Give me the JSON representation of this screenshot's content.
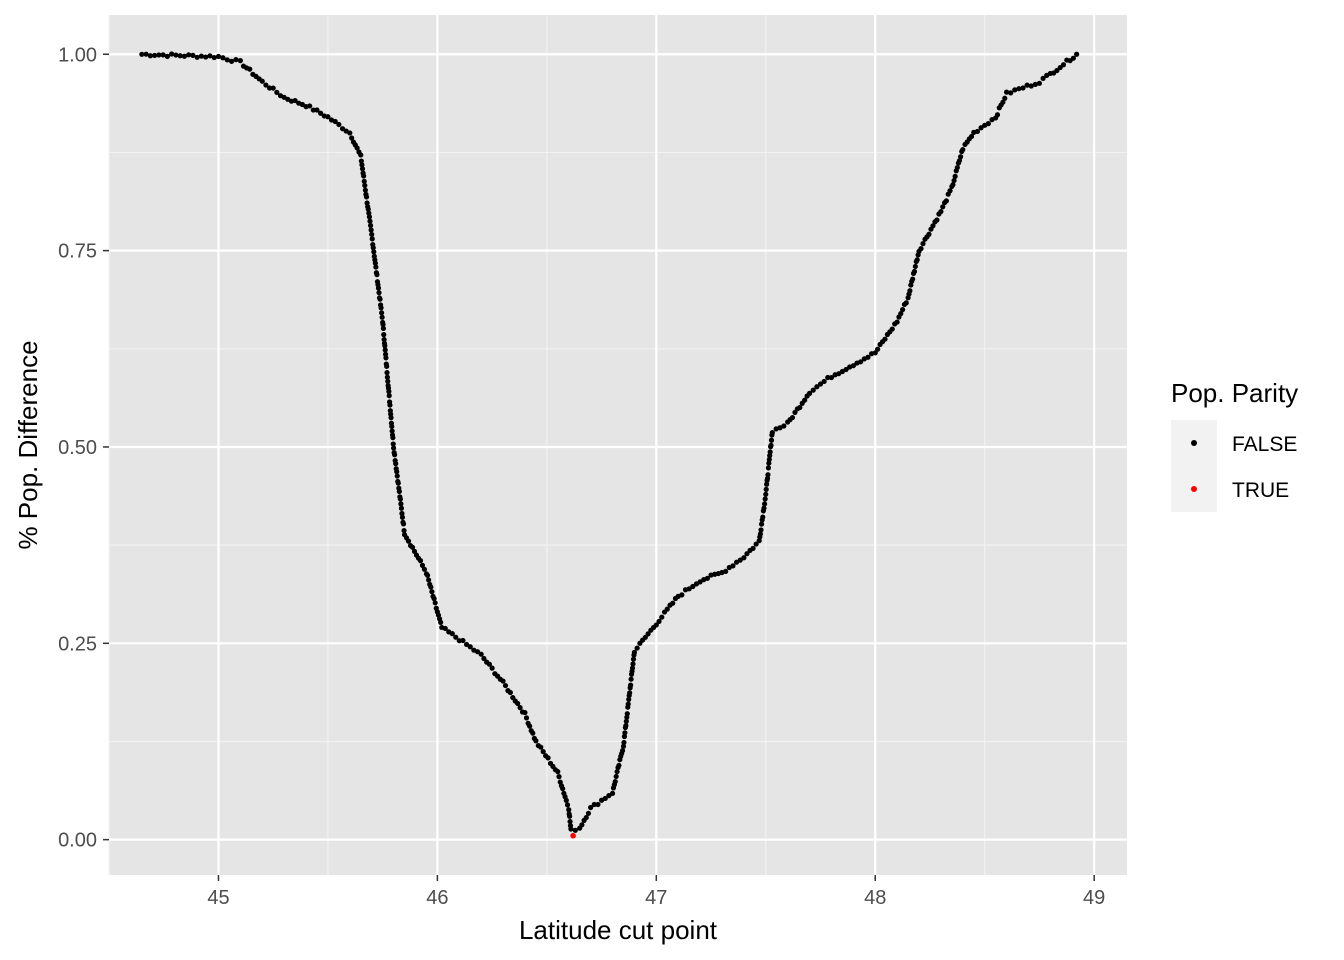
{
  "chart_data": {
    "type": "scatter",
    "title": "",
    "xlabel": "Latitude cut point",
    "ylabel": "% Pop. Difference",
    "xlim": [
      44.5,
      49.15
    ],
    "ylim": [
      -0.045,
      1.05
    ],
    "x_ticks": [
      45,
      46,
      47,
      48,
      49
    ],
    "x_tick_labels": [
      "45",
      "46",
      "47",
      "48",
      "49"
    ],
    "y_ticks": [
      0,
      0.25,
      0.5,
      0.75,
      1.0
    ],
    "y_tick_labels": [
      "0.00",
      "0.25",
      "0.50",
      "0.75",
      "1.00"
    ],
    "grid": true,
    "legend": {
      "title": "Pop. Parity",
      "position": "right",
      "entries": [
        {
          "label": "FALSE",
          "color": "#000000"
        },
        {
          "label": "TRUE",
          "color": "#ff0000"
        }
      ]
    },
    "curve_anchors": [
      [
        44.65,
        1.0
      ],
      [
        45.0,
        0.997
      ],
      [
        45.1,
        0.99
      ],
      [
        45.2,
        0.965
      ],
      [
        45.3,
        0.945
      ],
      [
        45.4,
        0.935
      ],
      [
        45.5,
        0.92
      ],
      [
        45.6,
        0.9
      ],
      [
        45.65,
        0.87
      ],
      [
        45.7,
        0.77
      ],
      [
        45.75,
        0.66
      ],
      [
        45.8,
        0.5
      ],
      [
        45.85,
        0.39
      ],
      [
        45.95,
        0.34
      ],
      [
        46.02,
        0.27
      ],
      [
        46.1,
        0.255
      ],
      [
        46.2,
        0.235
      ],
      [
        46.3,
        0.2
      ],
      [
        46.4,
        0.16
      ],
      [
        46.45,
        0.125
      ],
      [
        46.55,
        0.085
      ],
      [
        46.6,
        0.04
      ],
      [
        46.61,
        0.012
      ],
      [
        46.65,
        0.015
      ],
      [
        46.7,
        0.04
      ],
      [
        46.8,
        0.06
      ],
      [
        46.85,
        0.12
      ],
      [
        46.9,
        0.24
      ],
      [
        47.0,
        0.275
      ],
      [
        47.1,
        0.31
      ],
      [
        47.2,
        0.33
      ],
      [
        47.3,
        0.34
      ],
      [
        47.4,
        0.36
      ],
      [
        47.47,
        0.38
      ],
      [
        47.5,
        0.44
      ],
      [
        47.53,
        0.52
      ],
      [
        47.6,
        0.53
      ],
      [
        47.7,
        0.57
      ],
      [
        47.8,
        0.59
      ],
      [
        47.9,
        0.605
      ],
      [
        48.0,
        0.62
      ],
      [
        48.1,
        0.66
      ],
      [
        48.15,
        0.69
      ],
      [
        48.2,
        0.75
      ],
      [
        48.3,
        0.8
      ],
      [
        48.35,
        0.83
      ],
      [
        48.4,
        0.88
      ],
      [
        48.45,
        0.9
      ],
      [
        48.55,
        0.92
      ],
      [
        48.6,
        0.95
      ],
      [
        48.75,
        0.965
      ],
      [
        48.8,
        0.975
      ],
      [
        48.92,
        1.0
      ]
    ],
    "series": [
      {
        "name": "FALSE",
        "color": "#000000"
      },
      {
        "name": "TRUE",
        "color": "#ff0000",
        "points": [
          [
            46.62,
            0.005
          ]
        ]
      }
    ],
    "colors": {
      "panel_background": "#e5e5e5",
      "grid_major": "#ffffff",
      "grid_minor": "#f2f2f2",
      "tick_color": "#333333",
      "legend_key_background": "#f2f2f2"
    }
  }
}
